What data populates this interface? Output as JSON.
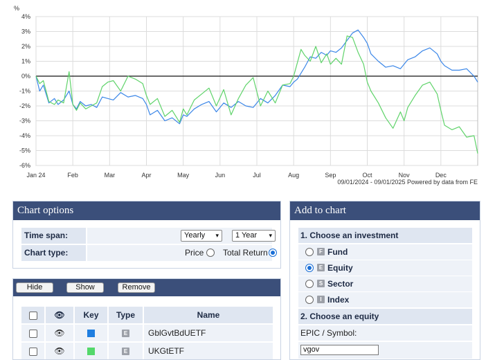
{
  "chart": {
    "unit_label": "%",
    "date_range": "09/01/2024 - 09/01/2025",
    "powered_by": "Powered by data from FE",
    "chart_data": {
      "type": "line",
      "title": "",
      "xlabel": "",
      "ylabel": "%",
      "ylim": [
        -6,
        4
      ],
      "y_ticks": [
        "4%",
        "3%",
        "2%",
        "1%",
        "0%",
        "-1%",
        "-2%",
        "-3%",
        "-4%",
        "-5%",
        "-6%"
      ],
      "x_ticks": [
        "Jan 24",
        "Feb",
        "Mar",
        "Apr",
        "May",
        "Jun",
        "Jul",
        "Aug",
        "Sep",
        "Oct",
        "Nov",
        "Dec"
      ],
      "x_domain": [
        0,
        12
      ],
      "grid": true,
      "zero_line": true,
      "series": [
        {
          "name": "GblGvtBdUETF",
          "color": "#3a86e8",
          "x": [
            0,
            0.1,
            0.2,
            0.35,
            0.5,
            0.6,
            0.75,
            0.9,
            1.0,
            1.1,
            1.2,
            1.35,
            1.5,
            1.65,
            1.8,
            1.95,
            2.1,
            2.3,
            2.5,
            2.7,
            2.9,
            3.0,
            3.1,
            3.3,
            3.5,
            3.7,
            3.9,
            4.0,
            4.1,
            4.3,
            4.5,
            4.7,
            4.9,
            5.1,
            5.3,
            5.5,
            5.7,
            5.9,
            6.1,
            6.3,
            6.5,
            6.7,
            6.9,
            7.0,
            7.1,
            7.2,
            7.3,
            7.45,
            7.6,
            7.75,
            7.9,
            8.0,
            8.15,
            8.3,
            8.45,
            8.6,
            8.75,
            8.9,
            9.0,
            9.1,
            9.3,
            9.5,
            9.7,
            9.9,
            10.0,
            10.1,
            10.3,
            10.5,
            10.7,
            10.9,
            11.0,
            11.1,
            11.3,
            11.5,
            11.7,
            11.9,
            12.0
          ],
          "y": [
            0.0,
            -1.0,
            -0.6,
            -1.8,
            -1.5,
            -1.9,
            -1.6,
            -1.0,
            -1.9,
            -2.2,
            -1.7,
            -2.0,
            -1.9,
            -2.1,
            -1.4,
            -1.5,
            -1.6,
            -1.1,
            -1.4,
            -1.3,
            -1.5,
            -1.9,
            -2.6,
            -2.3,
            -3.0,
            -2.8,
            -3.2,
            -2.6,
            -2.7,
            -2.2,
            -1.9,
            -1.7,
            -2.4,
            -1.8,
            -2.1,
            -1.7,
            -2.0,
            -2.1,
            -1.5,
            -1.8,
            -1.3,
            -0.6,
            -0.7,
            -0.4,
            -0.2,
            0.2,
            0.6,
            1.3,
            1.2,
            1.6,
            1.4,
            1.7,
            1.6,
            1.9,
            2.4,
            2.9,
            3.1,
            2.6,
            2.2,
            1.5,
            1.0,
            0.6,
            0.7,
            0.5,
            0.8,
            1.1,
            1.3,
            1.7,
            1.9,
            1.5,
            1.0,
            0.7,
            0.4,
            0.4,
            0.5,
            0.0,
            -0.4
          ]
        },
        {
          "name": "UKGtETF",
          "color": "#5fd36a",
          "x": [
            0,
            0.1,
            0.2,
            0.35,
            0.5,
            0.6,
            0.75,
            0.9,
            1.0,
            1.1,
            1.2,
            1.35,
            1.5,
            1.65,
            1.8,
            1.95,
            2.1,
            2.3,
            2.5,
            2.7,
            2.9,
            3.0,
            3.1,
            3.3,
            3.5,
            3.7,
            3.9,
            4.0,
            4.1,
            4.3,
            4.5,
            4.7,
            4.9,
            5.1,
            5.3,
            5.5,
            5.7,
            5.9,
            6.1,
            6.3,
            6.5,
            6.7,
            6.9,
            7.0,
            7.1,
            7.2,
            7.3,
            7.45,
            7.6,
            7.75,
            7.9,
            8.0,
            8.15,
            8.3,
            8.45,
            8.6,
            8.75,
            8.9,
            9.0,
            9.1,
            9.3,
            9.5,
            9.7,
            9.9,
            10.0,
            10.1,
            10.3,
            10.5,
            10.7,
            10.9,
            11.0,
            11.1,
            11.3,
            11.5,
            11.7,
            11.9,
            12.0
          ],
          "y": [
            0.0,
            -0.5,
            -0.3,
            -1.7,
            -1.9,
            -1.6,
            -1.8,
            0.3,
            -1.9,
            -2.3,
            -1.8,
            -2.2,
            -2.0,
            -1.8,
            -0.7,
            -0.4,
            -0.3,
            -1.0,
            0.0,
            -0.2,
            -0.5,
            -1.3,
            -1.9,
            -1.5,
            -2.7,
            -2.3,
            -3.1,
            -2.2,
            -2.6,
            -1.6,
            -1.2,
            -0.8,
            -2.0,
            -0.9,
            -2.6,
            -1.5,
            -0.6,
            -0.1,
            -2.0,
            -1.0,
            -1.8,
            -0.6,
            -0.5,
            0.0,
            0.9,
            1.8,
            1.4,
            1.0,
            2.0,
            0.9,
            1.5,
            0.8,
            1.2,
            0.8,
            2.7,
            2.6,
            1.6,
            0.8,
            -0.4,
            -1.0,
            -1.8,
            -2.8,
            -3.5,
            -2.4,
            -3.0,
            -2.1,
            -1.3,
            -0.6,
            -0.4,
            -1.2,
            -2.3,
            -3.3,
            -3.6,
            -3.4,
            -4.1,
            -4.0,
            -5.2
          ]
        }
      ]
    }
  },
  "chart_options": {
    "title": "Chart options",
    "time_span_label": "Time span:",
    "period_select": "Yearly",
    "length_select": "1 Year",
    "chart_type_label": "Chart type:",
    "price_label": "Price",
    "total_return_label": "Total Return",
    "selected_type": "Total Return"
  },
  "series_table": {
    "hide_label": "Hide",
    "show_label": "Show",
    "remove_label": "Remove",
    "headers": {
      "key": "Key",
      "type": "Type",
      "name": "Name"
    },
    "rows": [
      {
        "key_color": "#1f7ee0",
        "type": "E",
        "name": "GblGvtBdUETF"
      },
      {
        "key_color": "#54d86a",
        "type": "E",
        "name": "UKGtETF"
      }
    ]
  },
  "add_to_chart": {
    "title": "Add to chart",
    "step1": "1. Choose an investment",
    "options": [
      {
        "badge": "F",
        "label": "Fund",
        "selected": false
      },
      {
        "badge": "E",
        "label": "Equity",
        "selected": true
      },
      {
        "badge": "S",
        "label": "Sector",
        "selected": false
      },
      {
        "badge": "I",
        "label": "Index",
        "selected": false
      }
    ],
    "step2": "2. Choose an equity",
    "epic_label": "EPIC / Symbol:",
    "epic_value": "vgov"
  }
}
